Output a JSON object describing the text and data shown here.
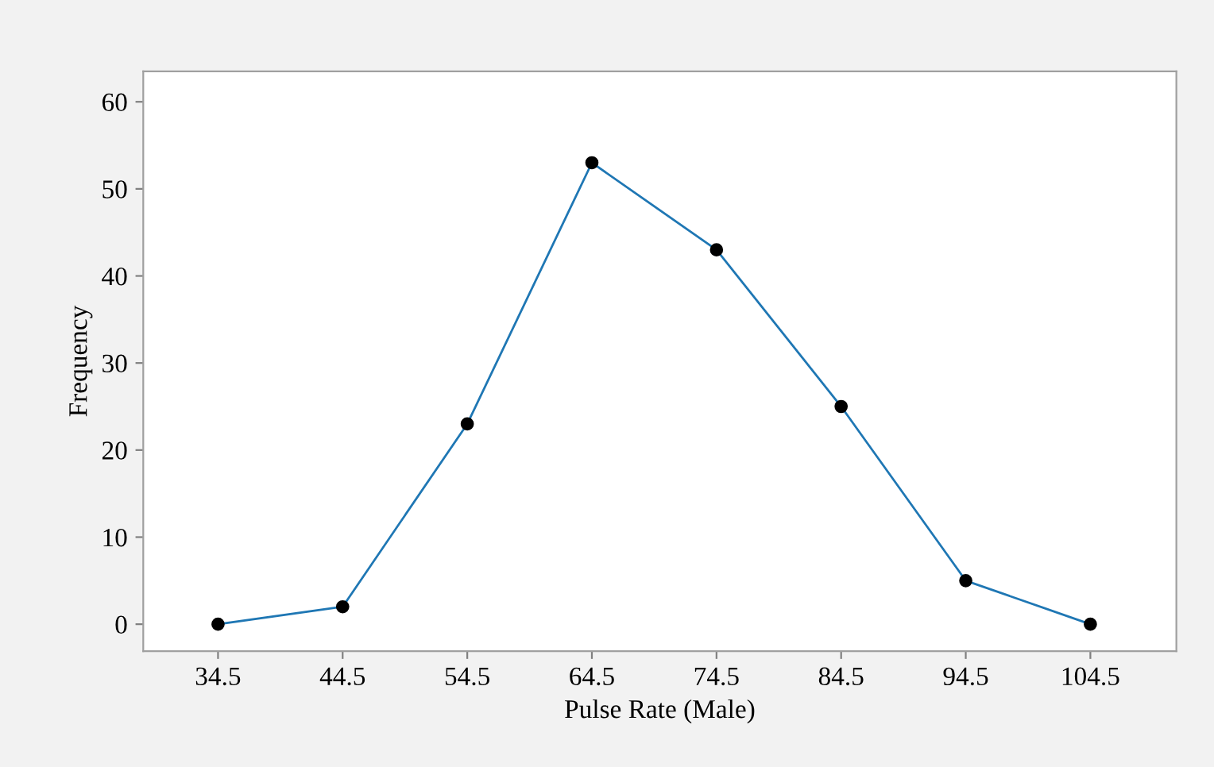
{
  "chart_data": {
    "type": "line",
    "xlabel": "Pulse Rate (Male)",
    "ylabel": "Frequency",
    "x": [
      34.5,
      44.5,
      54.5,
      64.5,
      74.5,
      84.5,
      94.5,
      104.5
    ],
    "series": [
      {
        "color": "#1f77b4",
        "values": [
          0,
          2,
          23,
          53,
          43,
          25,
          5,
          0
        ]
      }
    ],
    "marker": "circle",
    "line_style": "solid",
    "grid": false,
    "legend": false,
    "xlim": [
      28.5,
      111.4
    ],
    "ylim": [
      -3.1,
      63.5
    ],
    "xticks": [
      34.5,
      44.5,
      54.5,
      64.5,
      74.5,
      84.5,
      94.5,
      104.5
    ],
    "yticks": [
      0,
      10,
      20,
      30,
      40,
      50,
      60
    ]
  }
}
